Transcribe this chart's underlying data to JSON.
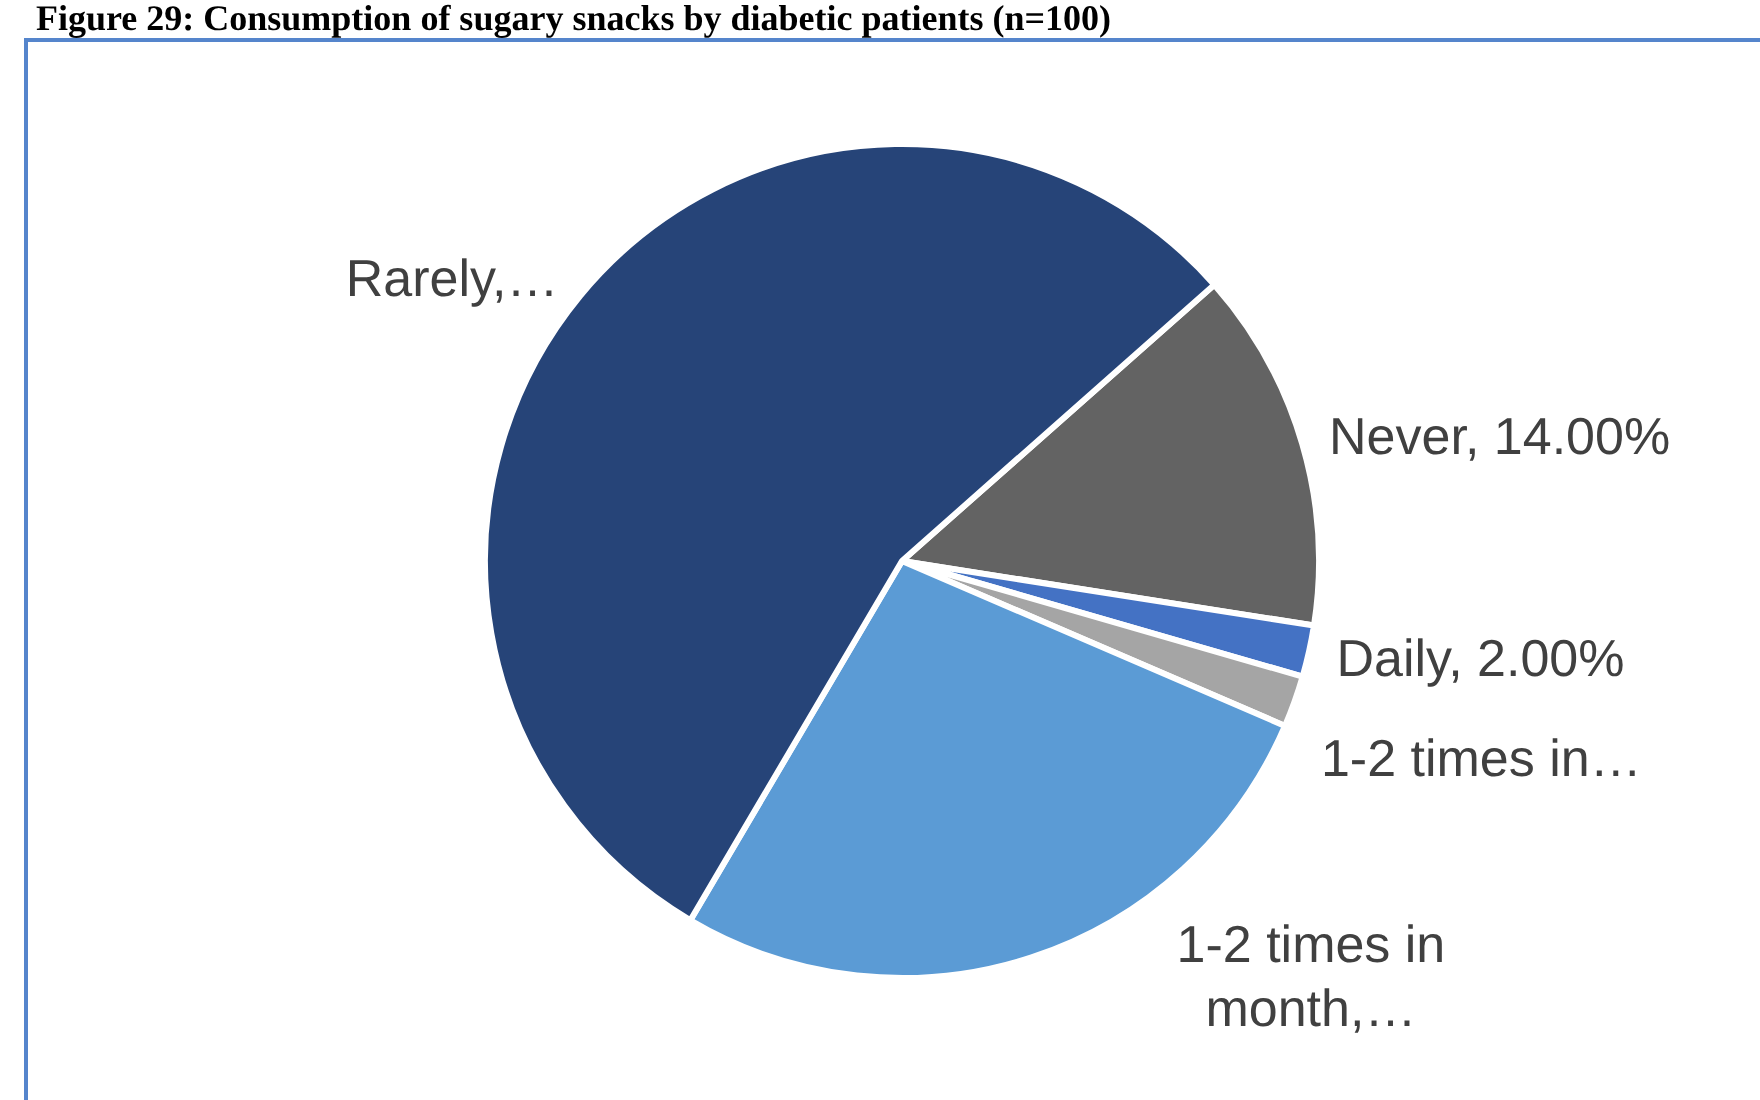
{
  "chart_data": {
    "type": "pie",
    "title": "Figure 29: Consumption of sugary snacks by diabetic patients (n=100)",
    "categories": [
      "Never",
      "Daily",
      "1-2 times in…",
      "1-2 times in month,…",
      "Rarely,…"
    ],
    "values": [
      14,
      2,
      2,
      27,
      55
    ],
    "colors": [
      "#636363",
      "#4472c4",
      "#a5a5a5",
      "#5b9bd5",
      "#264478"
    ],
    "value_labels": [
      "14.00%",
      "2.00%",
      null,
      null,
      null
    ]
  }
}
